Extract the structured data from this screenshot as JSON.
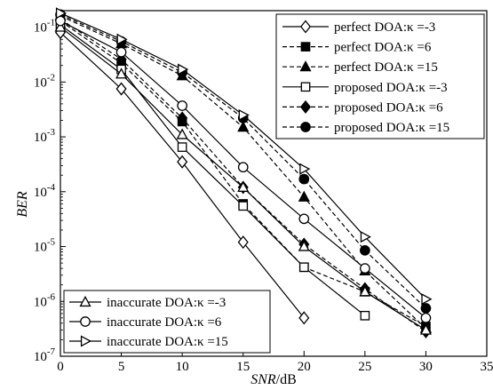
{
  "chart_data": {
    "type": "line",
    "title": "",
    "xlabel_italic": "SNR",
    "xlabel_unit": "/dB",
    "ylabel": "BER",
    "xlim": [
      0,
      35
    ],
    "ylim": [
      1e-07,
      0.2
    ],
    "yscale": "log",
    "grid": false,
    "x_ticks": [
      "0",
      "5",
      "10",
      "15",
      "20",
      "25",
      "30",
      "35"
    ],
    "y_ticks": [
      {
        "base": "10",
        "exp": "-1"
      },
      {
        "base": "10",
        "exp": "-2"
      },
      {
        "base": "10",
        "exp": "-3"
      },
      {
        "base": "10",
        "exp": "-4"
      },
      {
        "base": "10",
        "exp": "-5"
      },
      {
        "base": "10",
        "exp": "-6"
      },
      {
        "base": "10",
        "exp": "-7"
      }
    ],
    "legend_top_right": [
      "perfect DOA:κ =-3",
      "perfect DOA:κ =6",
      "perfect DOA:κ =15",
      "proposed DOA:κ =-3",
      "proposed DOA:κ =6",
      "proposed DOA:κ =15"
    ],
    "legend_bottom_left": [
      "inaccurate DOA:κ =-3",
      "inaccurate DOA:κ =6",
      "inaccurate DOA:κ =15"
    ],
    "series": [
      {
        "name": "perfect DOA:κ =-3",
        "x": [
          0,
          5,
          10,
          15,
          20
        ],
        "y": [
          0.08,
          0.0075,
          0.00035,
          1.2e-05,
          5e-07
        ],
        "marker": "diamond-open",
        "dash": "solid",
        "legend": "tr"
      },
      {
        "name": "perfect DOA:κ =6",
        "x": [
          0,
          5,
          10,
          15,
          20,
          25,
          30
        ],
        "y": [
          0.13,
          0.022,
          0.0019,
          6e-05,
          4.2e-06,
          1.5e-06,
          3.5e-07
        ],
        "marker": "square-filled",
        "dash": "dashed",
        "legend": "tr"
      },
      {
        "name": "perfect DOA:κ =15",
        "x": [
          0,
          5,
          10,
          15,
          20,
          25,
          30
        ],
        "y": [
          0.16,
          0.05,
          0.013,
          0.0015,
          8e-05,
          3.6e-06,
          3.2e-07
        ],
        "marker": "triangle-filled",
        "dash": "dashed",
        "legend": "tr"
      },
      {
        "name": "proposed DOA:κ =-3",
        "x": [
          0,
          5,
          10,
          15,
          20,
          25
        ],
        "y": [
          0.11,
          0.017,
          0.00065,
          5.5e-05,
          4.2e-06,
          5.5e-07
        ],
        "marker": "square-open",
        "dash": "solid",
        "legend": "tr"
      },
      {
        "name": "proposed DOA:κ =6",
        "x": [
          0,
          5,
          10,
          15,
          20,
          25,
          30
        ],
        "y": [
          0.14,
          0.026,
          0.0022,
          0.00012,
          1.1e-05,
          1.7e-06,
          2.8e-07
        ],
        "marker": "diamond-filled",
        "dash": "dashed",
        "legend": "tr"
      },
      {
        "name": "proposed DOA:κ =15",
        "x": [
          0,
          5,
          10,
          15,
          20,
          25,
          30
        ],
        "y": [
          0.17,
          0.055,
          0.015,
          0.0022,
          0.00017,
          8.5e-06,
          7.5e-07
        ],
        "marker": "circle-filled",
        "dash": "dashed",
        "legend": "tr"
      },
      {
        "name": "inaccurate DOA:κ =-3",
        "x": [
          0,
          5,
          10,
          15,
          20,
          25,
          30
        ],
        "y": [
          0.1,
          0.014,
          0.0011,
          0.00012,
          1e-05,
          1.5e-06,
          3e-07
        ],
        "marker": "triangle-open",
        "dash": "solid",
        "legend": "bl"
      },
      {
        "name": "inaccurate DOA:κ =6",
        "x": [
          0,
          5,
          10,
          15,
          20,
          25,
          30
        ],
        "y": [
          0.13,
          0.035,
          0.0037,
          0.00028,
          3.2e-05,
          4e-06,
          5e-07
        ],
        "marker": "circle-open",
        "dash": "solid",
        "legend": "bl"
      },
      {
        "name": "inaccurate DOA:κ =15",
        "x": [
          0,
          5,
          10,
          15,
          20,
          25,
          30
        ],
        "y": [
          0.18,
          0.06,
          0.017,
          0.0025,
          0.00026,
          1.5e-05,
          1.1e-06
        ],
        "marker": "triangle-right-open",
        "dash": "solid",
        "legend": "bl"
      }
    ]
  }
}
